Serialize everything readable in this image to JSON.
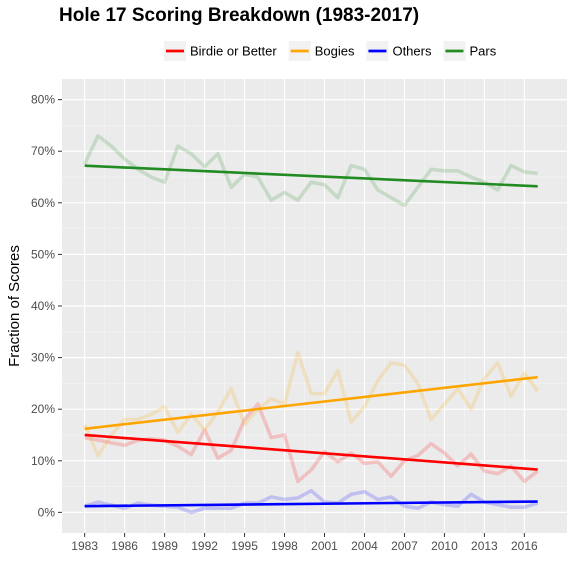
{
  "chart_data": {
    "type": "line",
    "title": "Hole 17 Scoring Breakdown (1983-2017)",
    "xlabel": "",
    "ylabel": "Fraction of Scores",
    "x": [
      1983,
      1984,
      1985,
      1986,
      1987,
      1988,
      1989,
      1990,
      1991,
      1992,
      1993,
      1994,
      1995,
      1996,
      1997,
      1998,
      1999,
      2000,
      2001,
      2002,
      2003,
      2004,
      2005,
      2006,
      2007,
      2008,
      2009,
      2010,
      2011,
      2012,
      2013,
      2014,
      2015,
      2016,
      2017
    ],
    "x_ticks": [
      1983,
      1986,
      1989,
      1992,
      1995,
      1998,
      2001,
      2004,
      2007,
      2010,
      2013,
      2016
    ],
    "x_tick_labels": [
      "1983",
      "1986",
      "1989",
      "1992",
      "1995",
      "1998",
      "2001",
      "2004",
      "2007",
      "2010",
      "2013",
      "2016"
    ],
    "xlim": [
      1981.3,
      2019.2
    ],
    "ylim": [
      -0.04,
      0.84
    ],
    "y_ticks": [
      0,
      0.1,
      0.2,
      0.3,
      0.4,
      0.5,
      0.6,
      0.7,
      0.8
    ],
    "y_tick_labels": [
      "0%",
      "10%",
      "20%",
      "30%",
      "40%",
      "50%",
      "60%",
      "70%",
      "80%"
    ],
    "grid": true,
    "legend_position": "top",
    "series": [
      {
        "name": "Birdie or Better",
        "color": "#ff0000",
        "values": [
          0.145,
          0.14,
          0.135,
          0.13,
          0.14,
          0.142,
          0.14,
          0.128,
          0.112,
          0.16,
          0.105,
          0.12,
          0.18,
          0.21,
          0.145,
          0.15,
          0.06,
          0.082,
          0.118,
          0.098,
          0.115,
          0.095,
          0.098,
          0.07,
          0.1,
          0.11,
          0.133,
          0.115,
          0.09,
          0.113,
          0.08,
          0.075,
          0.09,
          0.06,
          0.08
        ],
        "trend": [
          0.15,
          0.083
        ]
      },
      {
        "name": "Bogies",
        "color": "#ffa500",
        "values": [
          0.17,
          0.11,
          0.15,
          0.18,
          0.18,
          0.19,
          0.205,
          0.155,
          0.19,
          0.16,
          0.195,
          0.24,
          0.17,
          0.2,
          0.22,
          0.21,
          0.31,
          0.23,
          0.23,
          0.275,
          0.175,
          0.205,
          0.255,
          0.29,
          0.285,
          0.25,
          0.18,
          0.21,
          0.24,
          0.2,
          0.26,
          0.29,
          0.225,
          0.27,
          0.235
        ],
        "trend": [
          0.162,
          0.262
        ]
      },
      {
        "name": "Others",
        "color": "#0000ff",
        "values": [
          0.012,
          0.02,
          0.014,
          0.008,
          0.018,
          0.014,
          0.012,
          0.01,
          0.0,
          0.008,
          0.008,
          0.008,
          0.018,
          0.018,
          0.03,
          0.025,
          0.028,
          0.042,
          0.02,
          0.018,
          0.035,
          0.04,
          0.025,
          0.03,
          0.012,
          0.008,
          0.02,
          0.015,
          0.012,
          0.035,
          0.02,
          0.015,
          0.01,
          0.01,
          0.018
        ],
        "trend": [
          0.012,
          0.021
        ]
      },
      {
        "name": "Pars",
        "color": "#228b22",
        "values": [
          0.675,
          0.73,
          0.71,
          0.685,
          0.665,
          0.65,
          0.64,
          0.71,
          0.695,
          0.67,
          0.695,
          0.63,
          0.655,
          0.65,
          0.605,
          0.62,
          0.605,
          0.64,
          0.635,
          0.61,
          0.672,
          0.665,
          0.625,
          0.61,
          0.595,
          0.63,
          0.665,
          0.662,
          0.662,
          0.65,
          0.64,
          0.625,
          0.672,
          0.66,
          0.657
        ],
        "trend": [
          0.672,
          0.632
        ]
      }
    ]
  }
}
